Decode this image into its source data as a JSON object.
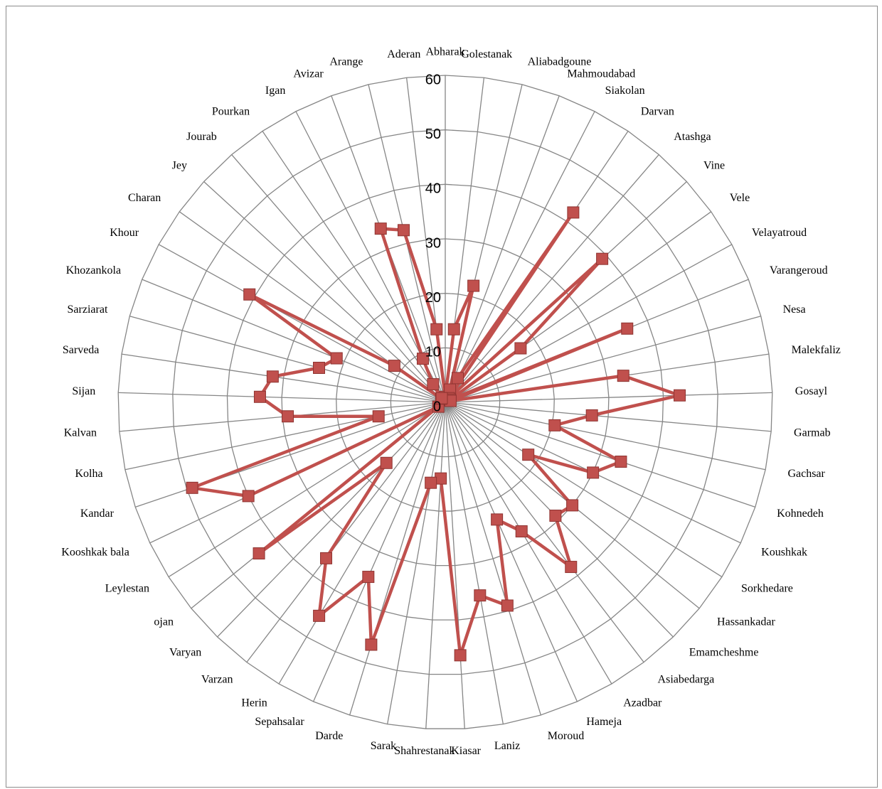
{
  "chart_data": {
    "type": "radar",
    "rmin": 0,
    "rmax": 60,
    "ticks": [
      0,
      10,
      20,
      30,
      40,
      50,
      60
    ],
    "grid": true,
    "legend": "none",
    "colors": {
      "series": "#c0504d",
      "grid": "#868686",
      "background": "#ffffff"
    },
    "categories": [
      "Abharak",
      "Golestanak",
      "Aliabadgoune",
      "Mahmoudabad",
      "Siakolan",
      "Darvan",
      "Atashga",
      "Vine",
      "Vele",
      "Velayatroud",
      "Varangeroud",
      "Nesa",
      "Malekfaliz",
      "Gosayl",
      "Garmab",
      "Gachsar",
      "Kohnedeh",
      "Koushkak",
      "Sorkhedare",
      "Hassankadar",
      "Emamcheshme",
      "Asiabedarga",
      "Azadbar",
      "Hameja",
      "Moroud",
      "Laniz",
      "Kiasar",
      "Shahrestanak",
      "Sarak",
      "Darde",
      "Sepahsalar",
      "Herin",
      "Varzan",
      "Varyan",
      "ojan",
      "Leylestan",
      "Kooshkak bala",
      "Kandar",
      "Kolha",
      "Kalvan",
      "Sijan",
      "Sarveda",
      "Sarziarat",
      "Khozankola",
      "Khour",
      "Charan",
      "Jey",
      "Jourab",
      "Pourkan",
      "Igan",
      "Avizar",
      "Arange",
      "Aderan"
    ],
    "series": [
      {
        "values": [
          1,
          13.5,
          22,
          2.5,
          5,
          42,
          1,
          39,
          17,
          1,
          36,
          1,
          33,
          43,
          27,
          20.5,
          34,
          30,
          18,
          30,
          29,
          38,
          27.5,
          23.5,
          39,
          36,
          46.5,
          14,
          15,
          46.5,
          35,
          45.5,
          36,
          15.5,
          44,
          1.5,
          40,
          49,
          12.5,
          29,
          34,
          32,
          24,
          21.5,
          41,
          11.5,
          1,
          1,
          4,
          9,
          34,
          32.5,
          13.5
        ]
      }
    ]
  }
}
